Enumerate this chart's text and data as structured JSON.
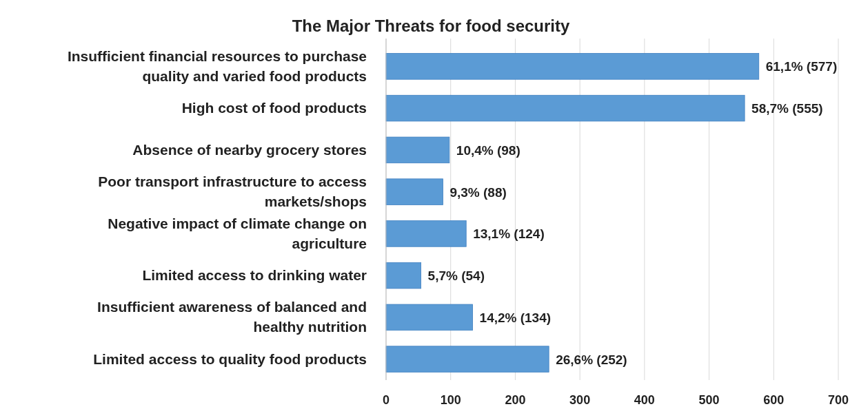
{
  "chart_data": {
    "type": "bar",
    "orientation": "horizontal",
    "title": "The Major Threats for food security",
    "categories": [
      "Insufficient financial resources to purchase quality and varied food products",
      "High cost of food products",
      "Absence of nearby grocery stores",
      "Poor transport infrastructure to access markets/shops",
      "Negative impact of climate change on agriculture",
      "Limited access to drinking water",
      "Insufficient awareness of balanced and healthy nutrition",
      "Limited access to quality food products"
    ],
    "values": [
      577,
      555,
      98,
      88,
      124,
      54,
      134,
      252
    ],
    "value_labels": [
      "61,1% (577)",
      "58,7% (555)",
      "10,4% (98)",
      "9,3% (88)",
      "13,1% (124)",
      "5,7% (54)",
      "14,2% (134)",
      "26,6% (252)"
    ],
    "color": "#5b9bd5",
    "xlim": [
      0,
      700
    ],
    "xticks": [
      0,
      100,
      200,
      300,
      400,
      500,
      600,
      700
    ],
    "grid": "x"
  }
}
